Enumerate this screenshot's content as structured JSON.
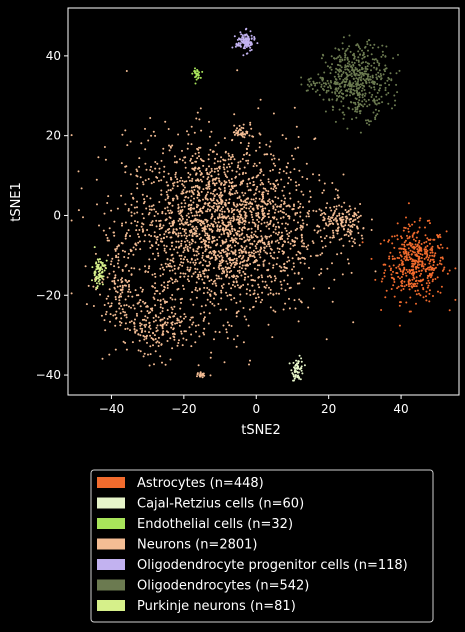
{
  "chart_data": {
    "type": "scatter",
    "xlabel": "tSNE2",
    "ylabel": "tSNE1",
    "xlim": [
      -52,
      56
    ],
    "ylim": [
      -45,
      52
    ],
    "xticks": [
      -40,
      -20,
      0,
      20,
      40
    ],
    "yticks": [
      -40,
      -20,
      0,
      20,
      40
    ],
    "grid": false,
    "legend_position": "bottom",
    "series": [
      {
        "name": "Astrocytes (n=448)",
        "color": "#f26b2d",
        "n": 448,
        "clusters": [
          {
            "cx": 44,
            "cy": -12,
            "sx": 4.2,
            "sy": 4.6,
            "n": 448
          }
        ]
      },
      {
        "name": "Cajal-Retzius cells (n=60)",
        "color": "#e6f5c9",
        "n": 60,
        "clusters": [
          {
            "cx": 11.5,
            "cy": -38.5,
            "sx": 0.8,
            "sy": 1.4,
            "n": 60
          }
        ]
      },
      {
        "name": "Endothelial cells (n=32)",
        "color": "#a8e45a",
        "n": 32,
        "clusters": [
          {
            "cx": -16.5,
            "cy": 35.5,
            "sx": 0.5,
            "sy": 0.6,
            "n": 32
          }
        ]
      },
      {
        "name": "Neurons (n=2801)",
        "color": "#f4bd94",
        "n": 2801,
        "clusters": [
          {
            "cx": -10,
            "cy": -3,
            "sx": 13,
            "sy": 11,
            "n": 2270
          },
          {
            "cx": 24,
            "cy": -2,
            "sx": 3.5,
            "sy": 2.5,
            "n": 150
          },
          {
            "cx": -38,
            "cy": -17,
            "sx": 2.5,
            "sy": 5,
            "n": 120
          },
          {
            "cx": -28,
            "cy": -28,
            "sx": 6,
            "sy": 4,
            "n": 200
          },
          {
            "cx": -4,
            "cy": 21,
            "sx": 1.2,
            "sy": 0.8,
            "n": 40
          },
          {
            "cx": -15,
            "cy": -40,
            "sx": 0.5,
            "sy": 0.3,
            "n": 21
          }
        ]
      },
      {
        "name": "Oligodendrocyte progenitor cells (n=118)",
        "color": "#c2b2f0",
        "n": 118,
        "clusters": [
          {
            "cx": -3,
            "cy": 43.5,
            "sx": 1.3,
            "sy": 1.2,
            "n": 118
          }
        ]
      },
      {
        "name": "Oligodendrocytes (n=542)",
        "color": "#6b7a50",
        "n": 542,
        "clusters": [
          {
            "cx": 28,
            "cy": 34,
            "sx": 4.5,
            "sy": 4.5,
            "n": 500
          },
          {
            "cx": 17,
            "cy": 33,
            "sx": 2.5,
            "sy": 1.0,
            "n": 42
          }
        ]
      },
      {
        "name": "Purkinje neurons (n=81)",
        "color": "#d6f08a",
        "n": 81,
        "clusters": [
          {
            "cx": -43.5,
            "cy": -14,
            "sx": 0.9,
            "sy": 2.0,
            "n": 81
          }
        ]
      }
    ]
  }
}
